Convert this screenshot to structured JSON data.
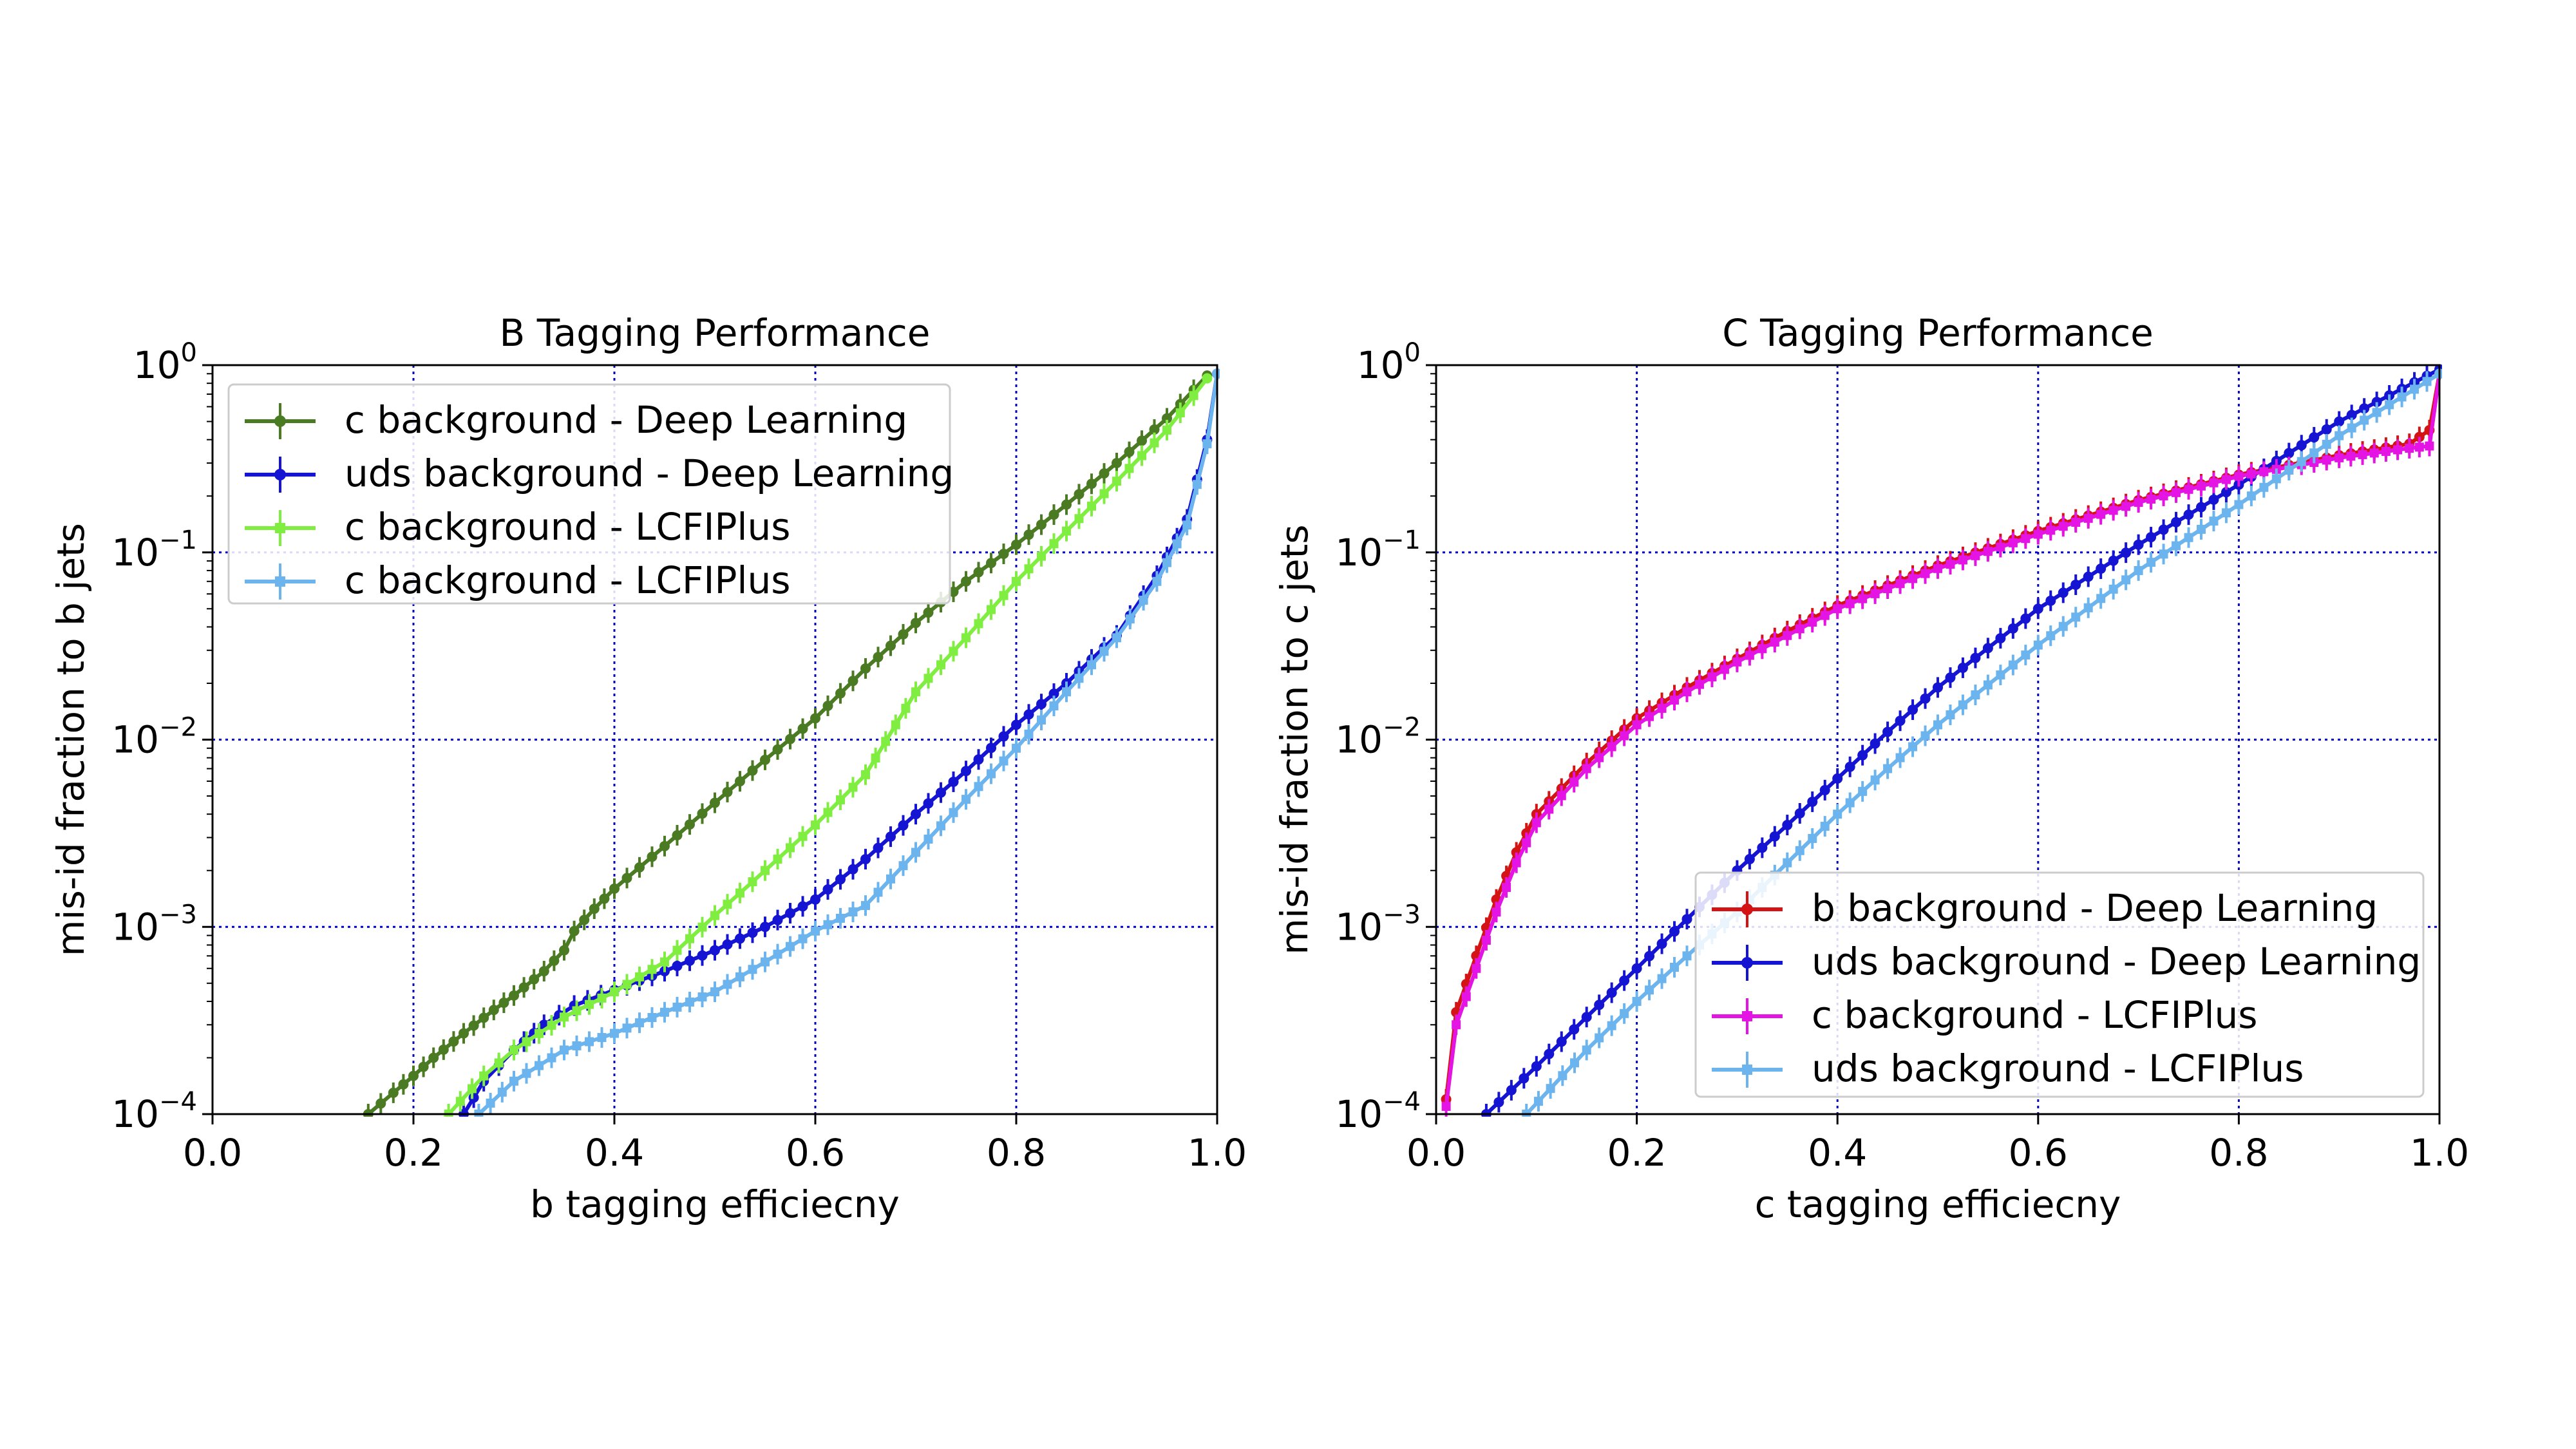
{
  "chart_data": [
    {
      "type": "line",
      "title": "B Tagging Performance",
      "xlabel": "b tagging efficiecny",
      "ylabel": "mis-id fraction to b jets",
      "xlim": [
        0.0,
        1.0
      ],
      "ylim": [
        0.0001,
        1
      ],
      "yscale": "log",
      "grid": true,
      "legend_position": "upper-left",
      "x_ticks": [
        "0.0",
        "0.2",
        "0.4",
        "0.6",
        "0.8",
        "1.0"
      ],
      "y_ticks": [
        {
          "base": "10",
          "exp": "−4"
        },
        {
          "base": "10",
          "exp": "−3"
        },
        {
          "base": "10",
          "exp": "−2"
        },
        {
          "base": "10",
          "exp": "−1"
        },
        {
          "base": "10",
          "exp": "0"
        }
      ],
      "series": [
        {
          "name": "c background - Deep Learning",
          "color": "#4a7a22",
          "marker": "circle",
          "points": [
            [
              0.155,
              0.0001
            ],
            [
              0.18,
              0.00013
            ],
            [
              0.2,
              0.00016
            ],
            [
              0.22,
              0.0002
            ],
            [
              0.25,
              0.00027
            ],
            [
              0.28,
              0.00036
            ],
            [
              0.3,
              0.00043
            ],
            [
              0.33,
              0.00058
            ],
            [
              0.35,
              0.00075
            ],
            [
              0.36,
              0.00095
            ],
            [
              0.38,
              0.00125
            ],
            [
              0.4,
              0.0016
            ],
            [
              0.45,
              0.0027
            ],
            [
              0.5,
              0.0046
            ],
            [
              0.55,
              0.0078
            ],
            [
              0.6,
              0.013
            ],
            [
              0.65,
              0.024
            ],
            [
              0.7,
              0.042
            ],
            [
              0.75,
              0.07
            ],
            [
              0.8,
              0.11
            ],
            [
              0.85,
              0.18
            ],
            [
              0.9,
              0.3
            ],
            [
              0.95,
              0.52
            ],
            [
              0.99,
              0.88
            ]
          ]
        },
        {
          "name": "uds background - Deep Learning",
          "color": "#1414d2",
          "marker": "circle",
          "points": [
            [
              0.25,
              0.0001
            ],
            [
              0.27,
              0.00015
            ],
            [
              0.3,
              0.00022
            ],
            [
              0.33,
              0.0003
            ],
            [
              0.36,
              0.00038
            ],
            [
              0.4,
              0.00046
            ],
            [
              0.45,
              0.00058
            ],
            [
              0.5,
              0.00075
            ],
            [
              0.55,
              0.001
            ],
            [
              0.6,
              0.0014
            ],
            [
              0.65,
              0.0023
            ],
            [
              0.7,
              0.004
            ],
            [
              0.75,
              0.0068
            ],
            [
              0.8,
              0.012
            ],
            [
              0.85,
              0.02
            ],
            [
              0.9,
              0.036
            ],
            [
              0.94,
              0.075
            ],
            [
              0.97,
              0.15
            ],
            [
              0.99,
              0.4
            ],
            [
              1.0,
              0.9
            ]
          ]
        },
        {
          "name": "c background - LCFIPlus",
          "color": "#80ee40",
          "marker": "plus",
          "points": [
            [
              0.235,
              0.0001
            ],
            [
              0.27,
              0.00016
            ],
            [
              0.3,
              0.00022
            ],
            [
              0.35,
              0.00033
            ],
            [
              0.4,
              0.00045
            ],
            [
              0.45,
              0.00065
            ],
            [
              0.5,
              0.00115
            ],
            [
              0.55,
              0.002
            ],
            [
              0.6,
              0.0035
            ],
            [
              0.65,
              0.0065
            ],
            [
              0.68,
              0.012
            ],
            [
              0.7,
              0.018
            ],
            [
              0.75,
              0.035
            ],
            [
              0.8,
              0.07
            ],
            [
              0.85,
              0.13
            ],
            [
              0.9,
              0.24
            ],
            [
              0.95,
              0.45
            ],
            [
              0.99,
              0.85
            ]
          ]
        },
        {
          "name": "c background - LCFIPlus",
          "color": "#6cb4ee",
          "marker": "plus",
          "points": [
            [
              0.265,
              0.0001
            ],
            [
              0.3,
              0.00015
            ],
            [
              0.35,
              0.00022
            ],
            [
              0.4,
              0.00027
            ],
            [
              0.45,
              0.00035
            ],
            [
              0.5,
              0.00045
            ],
            [
              0.55,
              0.00065
            ],
            [
              0.6,
              0.00095
            ],
            [
              0.65,
              0.0013
            ],
            [
              0.7,
              0.0025
            ],
            [
              0.75,
              0.0048
            ],
            [
              0.8,
              0.009
            ],
            [
              0.85,
              0.018
            ],
            [
              0.9,
              0.035
            ],
            [
              0.94,
              0.07
            ],
            [
              0.97,
              0.14
            ],
            [
              0.99,
              0.38
            ],
            [
              1.0,
              0.9
            ]
          ]
        }
      ]
    },
    {
      "type": "line",
      "title": "C Tagging Performance",
      "xlabel": "c tagging efficiecny",
      "ylabel": "mis-id fraction to c jets",
      "xlim": [
        0.0,
        1.0
      ],
      "ylim": [
        0.0001,
        1
      ],
      "yscale": "log",
      "grid": true,
      "legend_position": "lower-right",
      "x_ticks": [
        "0.0",
        "0.2",
        "0.4",
        "0.6",
        "0.8",
        "1.0"
      ],
      "y_ticks": [
        {
          "base": "10",
          "exp": "−4"
        },
        {
          "base": "10",
          "exp": "−3"
        },
        {
          "base": "10",
          "exp": "−2"
        },
        {
          "base": "10",
          "exp": "−1"
        },
        {
          "base": "10",
          "exp": "0"
        }
      ],
      "series": [
        {
          "name": "b background - Deep Learning",
          "color": "#d41414",
          "marker": "circle",
          "points": [
            [
              0.01,
              0.00012
            ],
            [
              0.02,
              0.00035
            ],
            [
              0.04,
              0.0007
            ],
            [
              0.06,
              0.0014
            ],
            [
              0.08,
              0.0025
            ],
            [
              0.1,
              0.004
            ],
            [
              0.15,
              0.0075
            ],
            [
              0.2,
              0.013
            ],
            [
              0.25,
              0.019
            ],
            [
              0.3,
              0.027
            ],
            [
              0.35,
              0.038
            ],
            [
              0.4,
              0.052
            ],
            [
              0.5,
              0.085
            ],
            [
              0.6,
              0.13
            ],
            [
              0.7,
              0.19
            ],
            [
              0.8,
              0.26
            ],
            [
              0.9,
              0.33
            ],
            [
              0.97,
              0.38
            ],
            [
              0.99,
              0.45
            ],
            [
              1.0,
              0.9
            ]
          ]
        },
        {
          "name": "uds background - Deep Learning",
          "color": "#1414d2",
          "marker": "circle",
          "points": [
            [
              0.05,
              0.0001
            ],
            [
              0.1,
              0.00018
            ],
            [
              0.15,
              0.00033
            ],
            [
              0.2,
              0.0006
            ],
            [
              0.25,
              0.0011
            ],
            [
              0.3,
              0.002
            ],
            [
              0.35,
              0.0035
            ],
            [
              0.4,
              0.0062
            ],
            [
              0.45,
              0.011
            ],
            [
              0.5,
              0.019
            ],
            [
              0.6,
              0.05
            ],
            [
              0.7,
              0.11
            ],
            [
              0.8,
              0.23
            ],
            [
              0.9,
              0.5
            ],
            [
              1.0,
              0.95
            ]
          ]
        },
        {
          "name": "c background - LCFIPlus",
          "color": "#e414e4",
          "marker": "plus",
          "points": [
            [
              0.01,
              0.00011
            ],
            [
              0.02,
              0.0003
            ],
            [
              0.04,
              0.0006
            ],
            [
              0.06,
              0.0012
            ],
            [
              0.08,
              0.0022
            ],
            [
              0.1,
              0.0036
            ],
            [
              0.15,
              0.007
            ],
            [
              0.2,
              0.012
            ],
            [
              0.25,
              0.018
            ],
            [
              0.3,
              0.026
            ],
            [
              0.35,
              0.036
            ],
            [
              0.4,
              0.05
            ],
            [
              0.5,
              0.082
            ],
            [
              0.6,
              0.125
            ],
            [
              0.7,
              0.185
            ],
            [
              0.8,
              0.255
            ],
            [
              0.9,
              0.32
            ],
            [
              0.97,
              0.36
            ],
            [
              0.99,
              0.37
            ],
            [
              1.0,
              0.9
            ]
          ]
        },
        {
          "name": "uds background - LCFIPlus",
          "color": "#6cb4ee",
          "marker": "plus",
          "points": [
            [
              0.09,
              0.0001
            ],
            [
              0.15,
              0.00022
            ],
            [
              0.2,
              0.0004
            ],
            [
              0.25,
              0.0007
            ],
            [
              0.3,
              0.0012
            ],
            [
              0.35,
              0.0022
            ],
            [
              0.4,
              0.004
            ],
            [
              0.45,
              0.007
            ],
            [
              0.5,
              0.012
            ],
            [
              0.6,
              0.032
            ],
            [
              0.7,
              0.08
            ],
            [
              0.8,
              0.18
            ],
            [
              0.9,
              0.42
            ],
            [
              1.0,
              0.9
            ]
          ]
        }
      ]
    }
  ]
}
